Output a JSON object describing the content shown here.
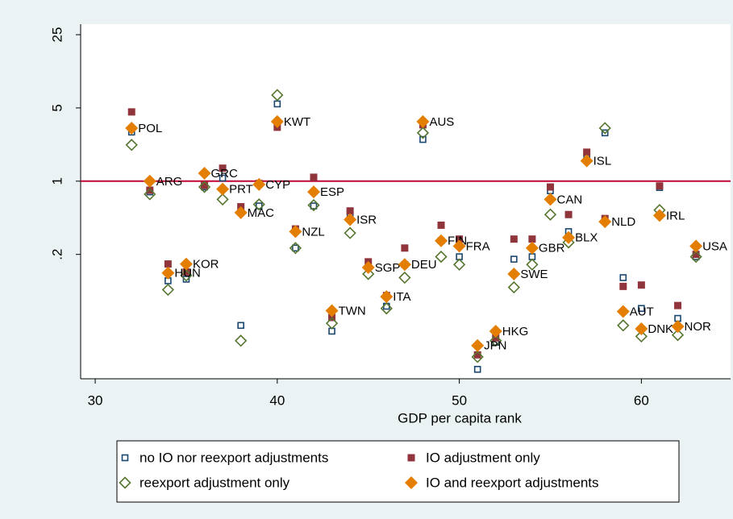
{
  "chart_data": {
    "type": "scatter",
    "x_label": "GDP per capita rank",
    "xlim": [
      29.2,
      64.9
    ],
    "xticks": [
      30,
      40,
      50,
      60
    ],
    "ylim": [
      0.013,
      31.5
    ],
    "yticks": [
      {
        "value": 0.2,
        "label": ".2"
      },
      1,
      5,
      25
    ],
    "y_scale": "log",
    "reference_line": 1,
    "reference_color": "#c10534",
    "x": [
      32,
      33,
      34,
      35,
      36,
      37,
      38,
      39,
      40,
      41,
      42,
      43,
      44,
      45,
      46,
      47,
      48,
      49,
      50,
      51,
      52,
      53,
      54,
      55,
      56,
      57,
      58,
      59,
      60,
      61,
      62,
      63
    ],
    "point_labels": [
      "POL",
      "ARG",
      "HUN",
      "KOR",
      "GRC",
      "PRT",
      "MAC",
      "CYP",
      "KWT",
      "NZL",
      "ESP",
      "TWN",
      "ISR",
      "SGP",
      "ITA",
      "DEU",
      "AUS",
      "FIN",
      "FRA",
      "JPN",
      "HKG",
      "SWE",
      "GBR",
      "CAN",
      "BLX",
      "ISL",
      "NLD",
      "AUT",
      "DNK",
      "IRL",
      "NOR",
      "USA"
    ],
    "labeled_series": 3,
    "series": [
      {
        "name": "no IO nor reexport adjustments",
        "color": "#1a476f",
        "marker": "square",
        "filled": false,
        "values": [
          2.94,
          0.79,
          0.112,
          0.116,
          0.88,
          1.07,
          0.042,
          0.58,
          5.46,
          0.23,
          0.58,
          0.037,
          0.48,
          0.16,
          0.064,
          0.16,
          2.5,
          0.27,
          0.19,
          0.016,
          0.029,
          0.18,
          0.19,
          0.81,
          0.33,
          1.67,
          2.89,
          0.12,
          0.061,
          0.87,
          0.049,
          0.19
        ]
      },
      {
        "name": "IO adjustment only",
        "color": "#90353b",
        "marker": "square",
        "filled": true,
        "values": [
          4.58,
          0.82,
          0.162,
          0.136,
          0.91,
          1.33,
          0.57,
          0.95,
          3.27,
          0.35,
          1.09,
          0.05,
          0.52,
          0.17,
          0.081,
          0.23,
          3.45,
          0.38,
          0.28,
          0.022,
          0.032,
          0.28,
          0.28,
          0.88,
          0.48,
          1.89,
          0.44,
          0.099,
          0.102,
          0.9,
          0.065,
          0.2
        ]
      },
      {
        "name": "reexport adjustment only",
        "color": "#55752f",
        "marker": "diamond",
        "filled": false,
        "values": [
          2.22,
          0.75,
          0.092,
          0.126,
          0.88,
          0.67,
          0.03,
          0.6,
          6.63,
          0.23,
          0.59,
          0.044,
          0.32,
          0.13,
          0.061,
          0.12,
          2.89,
          0.19,
          0.16,
          0.021,
          0.03,
          0.097,
          0.16,
          0.48,
          0.26,
          1.56,
          3.21,
          0.042,
          0.033,
          0.53,
          0.034,
          0.19
        ]
      },
      {
        "name": "IO and reexport adjustments",
        "color": "#e37e00",
        "marker": "diamond",
        "filled": true,
        "values": [
          3.21,
          1.0,
          0.133,
          0.162,
          1.19,
          0.84,
          0.5,
          0.93,
          3.7,
          0.33,
          0.79,
          0.058,
          0.43,
          0.15,
          0.079,
          0.16,
          3.7,
          0.27,
          0.24,
          0.027,
          0.037,
          0.13,
          0.23,
          0.67,
          0.29,
          1.56,
          0.41,
          0.057,
          0.039,
          0.47,
          0.041,
          0.24
        ]
      }
    ]
  }
}
